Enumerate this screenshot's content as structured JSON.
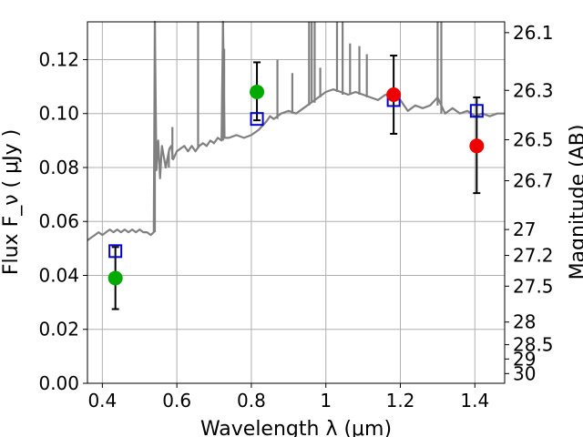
{
  "chart_data": {
    "type": "line",
    "title": "",
    "xlabel": "Wavelength  λ (μm)",
    "ylabel": "Flux  F_ν  ( μJy )",
    "y2label": "Magnitude (AB)",
    "xlim": [
      0.36,
      1.48
    ],
    "ylim": [
      0.0,
      0.134
    ],
    "grid": true,
    "x_ticks": [
      0.4,
      0.6,
      0.8,
      1.0,
      1.2,
      1.4
    ],
    "x_tick_labels": [
      "0.4",
      "0.6",
      "0.8",
      "1",
      "1.2",
      "1.4"
    ],
    "y_ticks": [
      0.0,
      0.02,
      0.04,
      0.06,
      0.08,
      0.1,
      0.12
    ],
    "y_tick_labels": [
      "0.00",
      "0.02",
      "0.04",
      "0.06",
      "0.08",
      "0.10",
      "0.12"
    ],
    "y2_ticks": [
      {
        "label": "26.1",
        "flux": 0.13
      },
      {
        "label": "26.3",
        "flux": 0.1086
      },
      {
        "label": "26.5",
        "flux": 0.0903
      },
      {
        "label": "26.7",
        "flux": 0.0751
      },
      {
        "label": "27",
        "flux": 0.057
      },
      {
        "label": "27.2",
        "flux": 0.0474
      },
      {
        "label": "27.5",
        "flux": 0.036
      },
      {
        "label": "28",
        "flux": 0.0227
      },
      {
        "label": "28.5",
        "flux": 0.0143
      },
      {
        "label": "29",
        "flux": 0.009
      },
      {
        "label": "30",
        "flux": 0.0036
      }
    ],
    "colors": {
      "spectrum": "#808080",
      "model_markers": "#0000cc",
      "observed_green": "#00aa00",
      "observed_red": "#ee0000",
      "error_bars": "#000000",
      "grid": "#b0b0b0"
    },
    "series": [
      {
        "role": "spectrum",
        "x": [
          0.36,
          0.37,
          0.38,
          0.39,
          0.4,
          0.41,
          0.42,
          0.43,
          0.44,
          0.45,
          0.46,
          0.47,
          0.48,
          0.49,
          0.5,
          0.51,
          0.52,
          0.53,
          0.538,
          0.541,
          0.545,
          0.55,
          0.555,
          0.56,
          0.57,
          0.58,
          0.585,
          0.59,
          0.6,
          0.61,
          0.62,
          0.63,
          0.64,
          0.65,
          0.655,
          0.66,
          0.67,
          0.68,
          0.69,
          0.7,
          0.71,
          0.72,
          0.724,
          0.728,
          0.74,
          0.76,
          0.78,
          0.8,
          0.82,
          0.84,
          0.85,
          0.86,
          0.88,
          0.9,
          0.92,
          0.94,
          0.95,
          0.96,
          0.98,
          1.0,
          1.02,
          1.04,
          1.06,
          1.08,
          1.1,
          1.12,
          1.14,
          1.16,
          1.18,
          1.2,
          1.22,
          1.24,
          1.26,
          1.28,
          1.3,
          1.32,
          1.34,
          1.36,
          1.38,
          1.4,
          1.42,
          1.44,
          1.46,
          1.48
        ],
        "y": [
          0.053,
          0.054,
          0.055,
          0.056,
          0.055,
          0.056,
          0.057,
          0.056,
          0.057,
          0.056,
          0.057,
          0.056,
          0.057,
          0.056,
          0.057,
          0.056,
          0.056,
          0.055,
          0.056,
          0.134,
          0.079,
          0.09,
          0.076,
          0.088,
          0.08,
          0.087,
          0.088,
          0.083,
          0.086,
          0.087,
          0.088,
          0.086,
          0.088,
          0.086,
          0.087,
          0.088,
          0.089,
          0.088,
          0.09,
          0.089,
          0.091,
          0.09,
          0.134,
          0.091,
          0.091,
          0.092,
          0.091,
          0.092,
          0.094,
          0.097,
          0.099,
          0.098,
          0.1,
          0.101,
          0.1,
          0.102,
          0.103,
          0.104,
          0.106,
          0.108,
          0.109,
          0.108,
          0.107,
          0.108,
          0.107,
          0.106,
          0.105,
          0.107,
          0.106,
          0.105,
          0.101,
          0.103,
          0.102,
          0.103,
          0.106,
          0.1,
          0.102,
          0.1,
          0.101,
          0.099,
          0.1,
          0.099,
          0.1,
          0.1
        ]
      },
      {
        "role": "model",
        "marker": "open-square",
        "x": [
          0.435,
          0.815,
          1.182,
          1.405
        ],
        "y": [
          0.049,
          0.098,
          0.105,
          0.101
        ]
      },
      {
        "role": "observed",
        "marker": "filled-circle",
        "x": [
          0.435,
          0.815,
          1.182,
          1.405
        ],
        "y": [
          0.039,
          0.108,
          0.107,
          0.088
        ],
        "yerr_low": [
          0.0275,
          0.0975,
          0.0925,
          0.0705
        ],
        "yerr_high": [
          0.0505,
          0.119,
          0.1215,
          0.106
        ],
        "point_colors": [
          "green",
          "green",
          "red",
          "red"
        ]
      }
    ],
    "emission_spikes": [
      {
        "x": 0.541,
        "top": 0.134
      },
      {
        "x": 0.724,
        "top": 0.134
      },
      {
        "x": 0.5785,
        "top": 0.086
      },
      {
        "x": 0.588,
        "top": 0.095
      },
      {
        "x": 0.657,
        "top": 0.134
      },
      {
        "x": 0.727,
        "top": 0.124
      },
      {
        "x": 0.87,
        "top": 0.12
      },
      {
        "x": 0.91,
        "top": 0.115
      },
      {
        "x": 0.955,
        "top": 0.134
      },
      {
        "x": 0.962,
        "top": 0.134
      },
      {
        "x": 0.97,
        "top": 0.134
      },
      {
        "x": 0.985,
        "top": 0.117
      },
      {
        "x": 1.03,
        "top": 0.134
      },
      {
        "x": 1.045,
        "top": 0.134
      },
      {
        "x": 1.065,
        "top": 0.126
      },
      {
        "x": 1.09,
        "top": 0.125
      },
      {
        "x": 1.11,
        "top": 0.122
      },
      {
        "x": 1.3,
        "top": 0.134
      },
      {
        "x": 1.31,
        "top": 0.134
      }
    ]
  }
}
